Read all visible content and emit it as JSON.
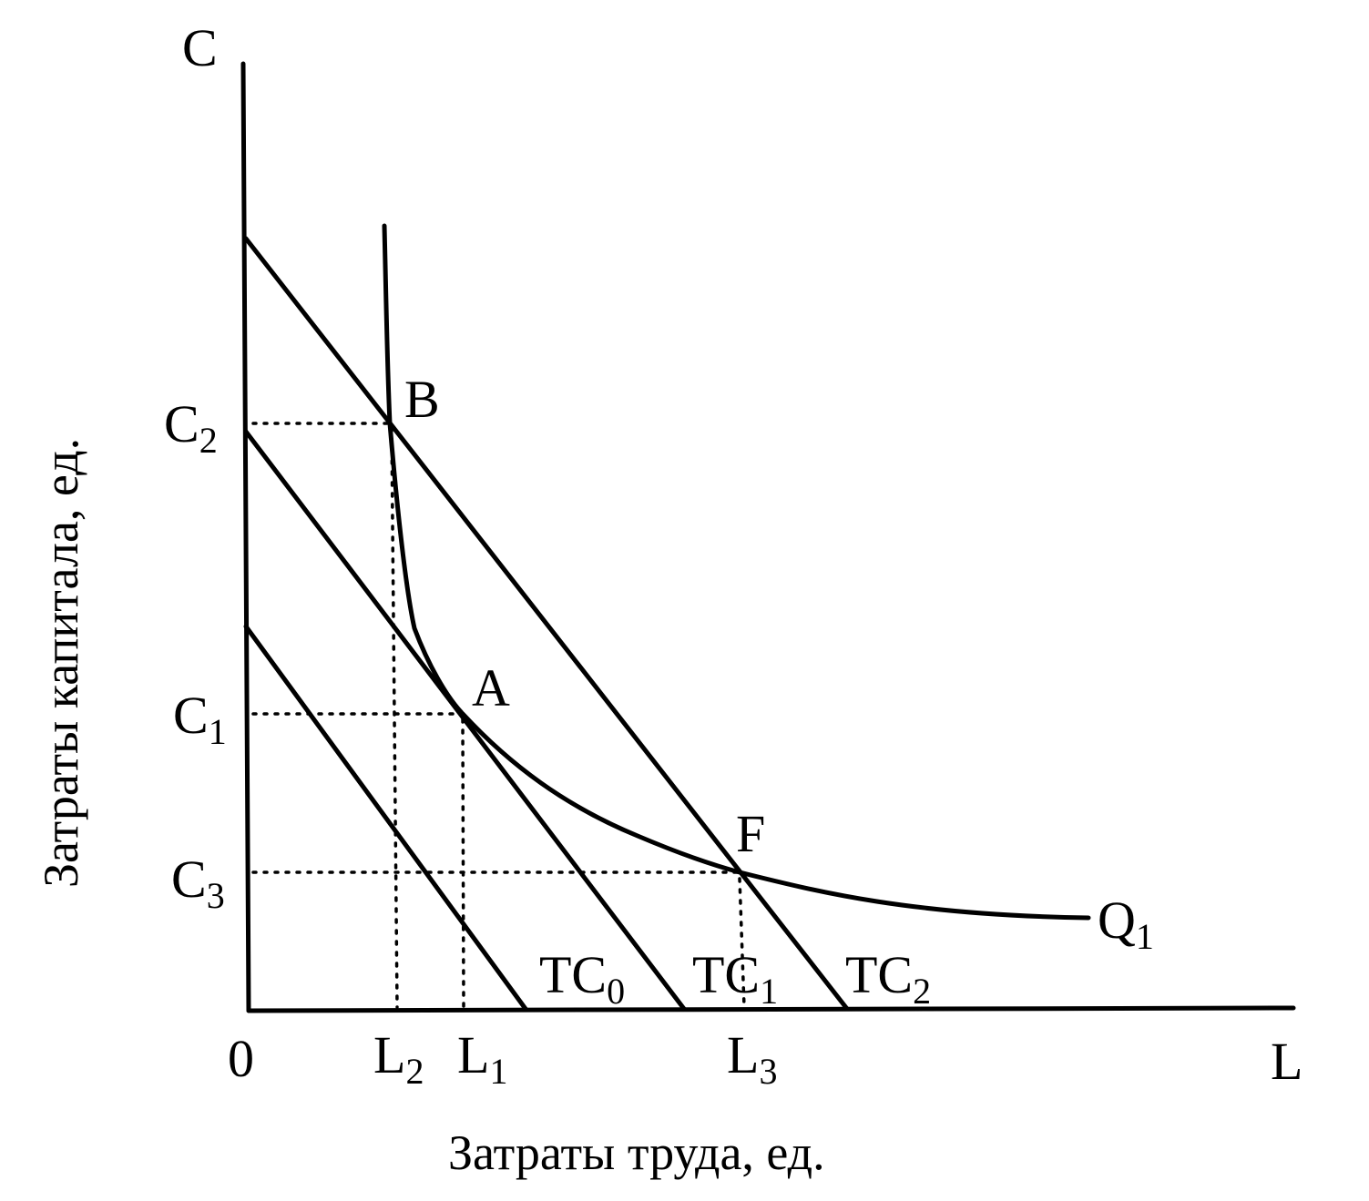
{
  "diagram": {
    "axes": {
      "y_axis_symbol": "C",
      "x_axis_symbol": "L",
      "origin_label": "0",
      "y_title": "Затраты капитала, ед.",
      "x_title": "Затраты труда, ед."
    },
    "x_ticks": [
      {
        "base": "L",
        "sub": "2"
      },
      {
        "base": "L",
        "sub": "1"
      },
      {
        "base": "L",
        "sub": "3"
      }
    ],
    "y_ticks": [
      {
        "base": "C",
        "sub": "2"
      },
      {
        "base": "C",
        "sub": "1"
      },
      {
        "base": "C",
        "sub": "3"
      }
    ],
    "points": [
      "B",
      "A",
      "F"
    ],
    "isoquant": {
      "base": "Q",
      "sub": "1"
    },
    "cost_lines": [
      {
        "base": "TC",
        "sub": "0"
      },
      {
        "base": "TC",
        "sub": "1"
      },
      {
        "base": "TC",
        "sub": "2"
      }
    ]
  }
}
